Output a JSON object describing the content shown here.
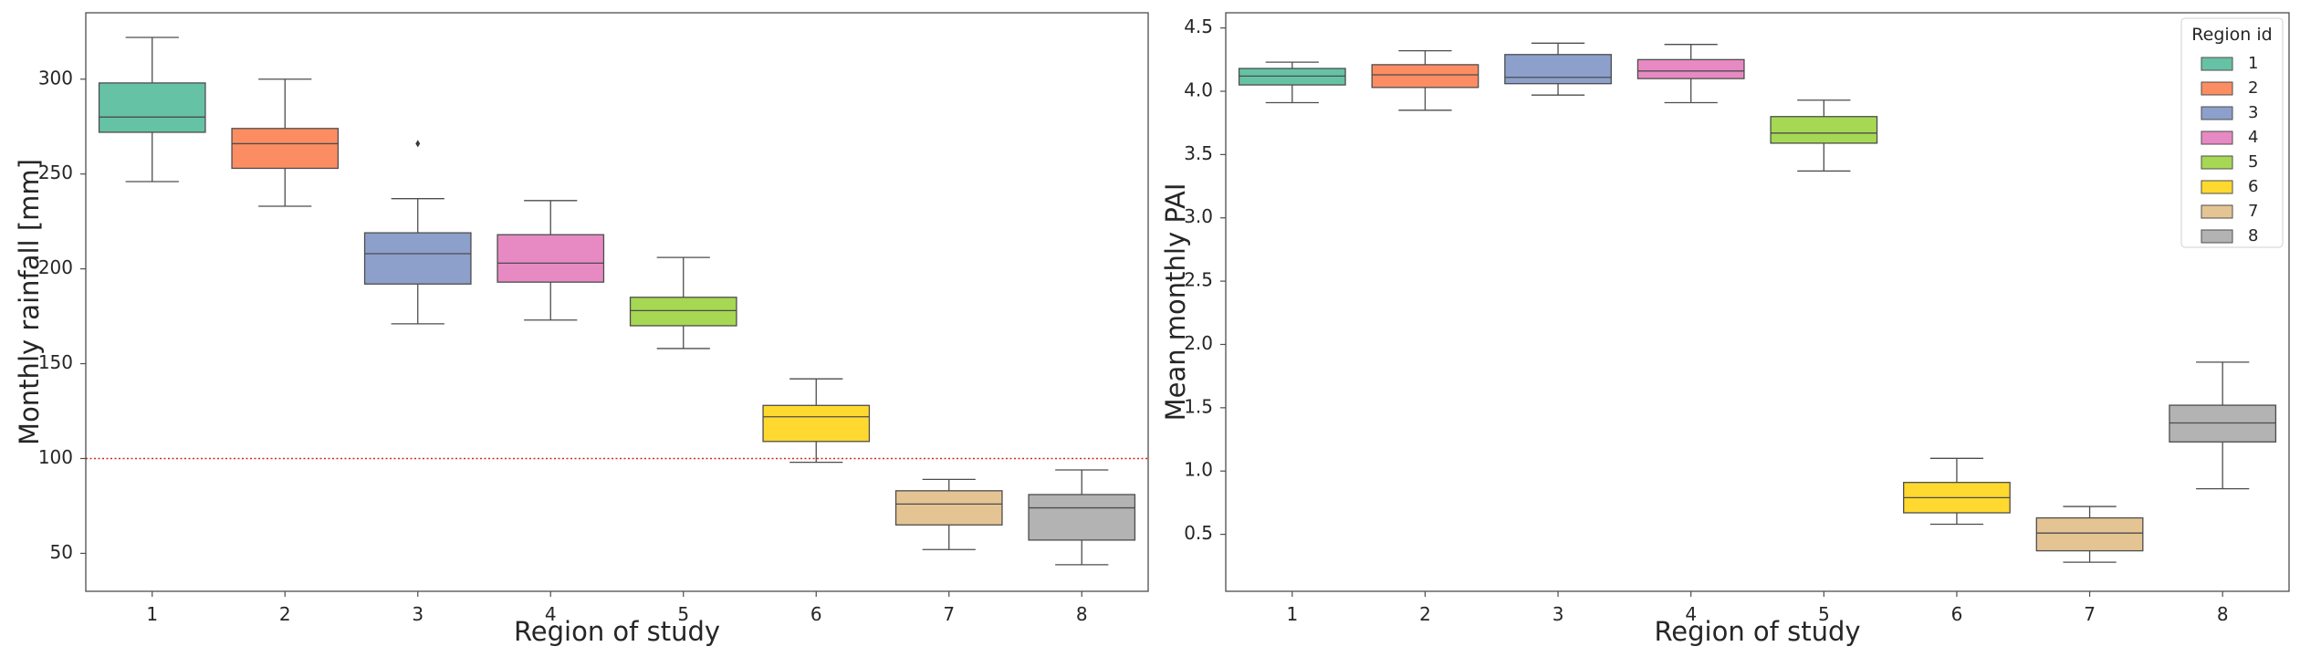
{
  "chart_data": [
    {
      "type": "box",
      "xlabel": "Region of study",
      "ylabel": "Monthly rainfall [mm]",
      "categories": [
        "1",
        "2",
        "3",
        "4",
        "5",
        "6",
        "7",
        "8"
      ],
      "ylim": [
        30,
        335
      ],
      "yticks": [
        50,
        100,
        150,
        200,
        250,
        300
      ],
      "grid": false,
      "reference_line": {
        "y": 100,
        "color": "#d62728",
        "style": "dotted"
      },
      "boxes": [
        {
          "category": "1",
          "whisker_low": 246,
          "q1": 272,
          "median": 280,
          "q3": 298,
          "whisker_high": 322,
          "outliers": []
        },
        {
          "category": "2",
          "whisker_low": 233,
          "q1": 253,
          "median": 266,
          "q3": 274,
          "whisker_high": 300,
          "outliers": []
        },
        {
          "category": "3",
          "whisker_low": 171,
          "q1": 192,
          "median": 208,
          "q3": 219,
          "whisker_high": 237,
          "outliers": [
            266
          ]
        },
        {
          "category": "4",
          "whisker_low": 173,
          "q1": 193,
          "median": 203,
          "q3": 218,
          "whisker_high": 236,
          "outliers": []
        },
        {
          "category": "5",
          "whisker_low": 158,
          "q1": 170,
          "median": 178,
          "q3": 185,
          "whisker_high": 206,
          "outliers": []
        },
        {
          "category": "6",
          "whisker_low": 98,
          "q1": 109,
          "median": 122,
          "q3": 128,
          "whisker_high": 142,
          "outliers": []
        },
        {
          "category": "7",
          "whisker_low": 52,
          "q1": 65,
          "median": 76,
          "q3": 83,
          "whisker_high": 89,
          "outliers": []
        },
        {
          "category": "8",
          "whisker_low": 44,
          "q1": 57,
          "median": 74,
          "q3": 81,
          "whisker_high": 94,
          "outliers": []
        }
      ]
    },
    {
      "type": "box",
      "xlabel": "Region of study",
      "ylabel": "Mean monthly PAI",
      "categories": [
        "1",
        "2",
        "3",
        "4",
        "5",
        "6",
        "7",
        "8"
      ],
      "ylim": [
        0.05,
        4.62
      ],
      "yticks": [
        "0.5",
        "1.0",
        "1.5",
        "2.0",
        "2.5",
        "3.0",
        "3.5",
        "4.0",
        "4.5"
      ],
      "grid": false,
      "legend": {
        "title": "Region id",
        "placement": "top-right",
        "entries": [
          "1",
          "2",
          "3",
          "4",
          "5",
          "6",
          "7",
          "8"
        ]
      },
      "boxes": [
        {
          "category": "1",
          "whisker_low": 3.91,
          "q1": 4.05,
          "median": 4.12,
          "q3": 4.18,
          "whisker_high": 4.23,
          "outliers": []
        },
        {
          "category": "2",
          "whisker_low": 3.85,
          "q1": 4.03,
          "median": 4.13,
          "q3": 4.21,
          "whisker_high": 4.32,
          "outliers": []
        },
        {
          "category": "3",
          "whisker_low": 3.97,
          "q1": 4.06,
          "median": 4.11,
          "q3": 4.29,
          "whisker_high": 4.38,
          "outliers": []
        },
        {
          "category": "4",
          "whisker_low": 3.91,
          "q1": 4.1,
          "median": 4.16,
          "q3": 4.25,
          "whisker_high": 4.37,
          "outliers": []
        },
        {
          "category": "5",
          "whisker_low": 3.37,
          "q1": 3.59,
          "median": 3.67,
          "q3": 3.8,
          "whisker_high": 3.93,
          "outliers": []
        },
        {
          "category": "6",
          "whisker_low": 0.58,
          "q1": 0.67,
          "median": 0.79,
          "q3": 0.91,
          "whisker_high": 1.1,
          "outliers": []
        },
        {
          "category": "7",
          "whisker_low": 0.28,
          "q1": 0.37,
          "median": 0.51,
          "q3": 0.63,
          "whisker_high": 0.72,
          "outliers": []
        },
        {
          "category": "8",
          "whisker_low": 0.86,
          "q1": 1.23,
          "median": 1.38,
          "q3": 1.52,
          "whisker_high": 1.86,
          "outliers": []
        }
      ]
    }
  ],
  "palette": [
    "#66c2a5",
    "#fc8d62",
    "#8da0cb",
    "#e78ac3",
    "#a6d854",
    "#ffd92f",
    "#e5c494",
    "#b3b3b3"
  ]
}
